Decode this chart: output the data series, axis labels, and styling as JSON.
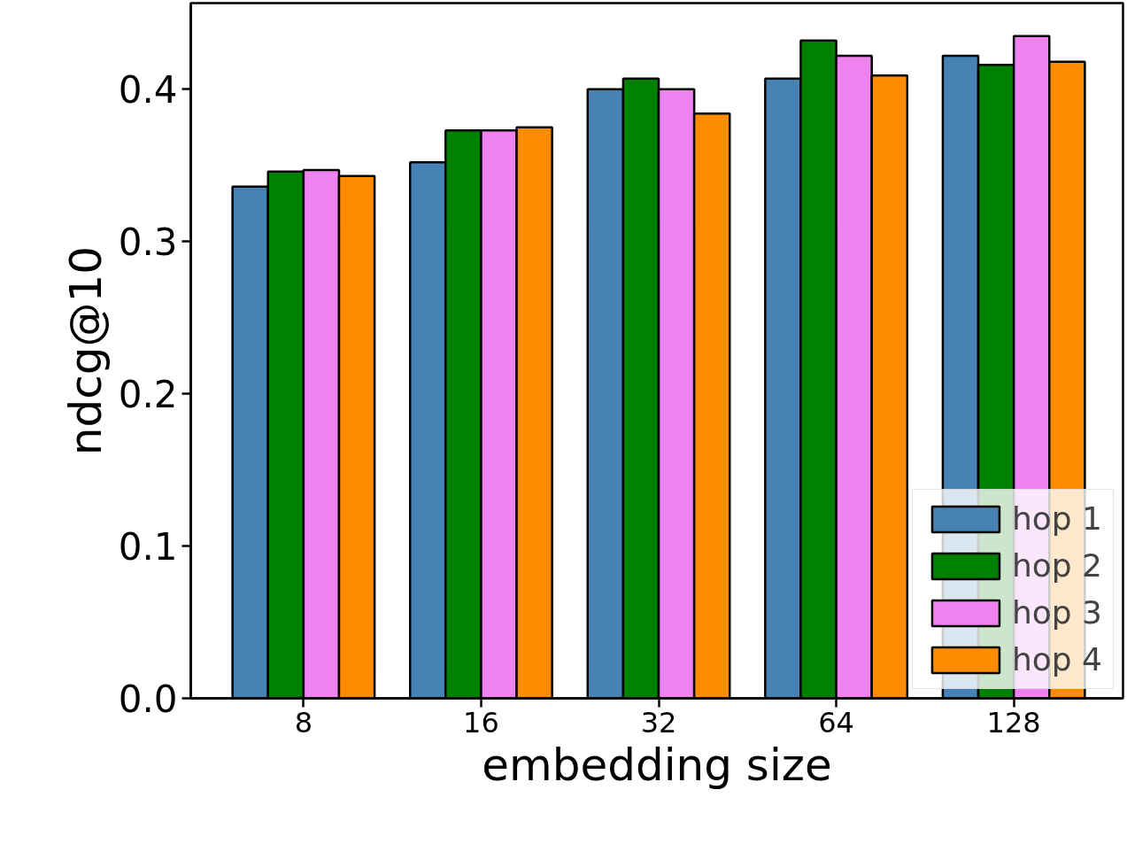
{
  "chart_data": {
    "type": "bar",
    "xlabel": "embedding size",
    "ylabel": "ndcg@10",
    "categories": [
      "8",
      "16",
      "32",
      "64",
      "128"
    ],
    "series": [
      {
        "name": "hop 1",
        "color": "#4682b4",
        "values": [
          0.336,
          0.352,
          0.4,
          0.407,
          0.422
        ]
      },
      {
        "name": "hop 2",
        "color": "#008000",
        "values": [
          0.346,
          0.373,
          0.407,
          0.432,
          0.416
        ]
      },
      {
        "name": "hop 3",
        "color": "#ee82ee",
        "values": [
          0.347,
          0.373,
          0.4,
          0.422,
          0.435
        ]
      },
      {
        "name": "hop 4",
        "color": "#ff8c00",
        "values": [
          0.343,
          0.375,
          0.384,
          0.409,
          0.418
        ]
      }
    ],
    "ylim": [
      0,
      0.4566
    ],
    "yticks": [
      {
        "value": 0,
        "label": "0.0"
      },
      {
        "value": 0.1,
        "label": "0.1"
      },
      {
        "value": 0.2,
        "label": "0.2"
      },
      {
        "value": 0.3,
        "label": "0.3"
      },
      {
        "value": 0.4,
        "label": "0.4"
      }
    ],
    "grid": false,
    "legend": "bottom right"
  }
}
